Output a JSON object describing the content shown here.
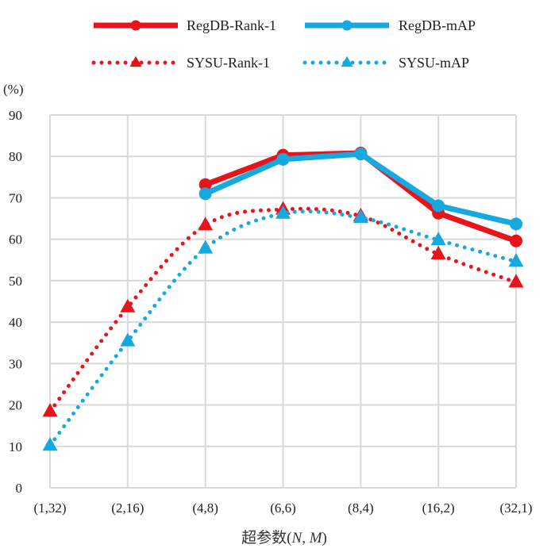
{
  "chart_data": {
    "type": "line",
    "title": "",
    "ylabel": "(%)",
    "xlabel_prefix": "超参数",
    "xlabel_vars": [
      "(",
      "N",
      ", ",
      "M",
      ")"
    ],
    "categories": [
      "(1,32)",
      "(2,16)",
      "(4,8)",
      "(6,6)",
      "(8,4)",
      "(16,2)",
      "(32,1)"
    ],
    "ylim": [
      0,
      90
    ],
    "yticks": [
      0,
      10,
      20,
      30,
      40,
      50,
      60,
      70,
      80,
      90
    ],
    "grid": true,
    "legend_position": "top",
    "series": [
      {
        "name": "RegDB-Rank-1",
        "style": "solid",
        "marker": "circle",
        "color": "#e8141b",
        "values": [
          null,
          null,
          73.2,
          80.3,
          80.8,
          66.3,
          59.6
        ]
      },
      {
        "name": "RegDB-mAP",
        "style": "solid",
        "marker": "circle",
        "color": "#16a9e0",
        "values": [
          null,
          null,
          71.0,
          79.3,
          80.6,
          68.1,
          63.7
        ]
      },
      {
        "name": "SYSU-Rank-1",
        "style": "dotted",
        "marker": "triangle",
        "color": "#e8141b",
        "values": [
          18.4,
          43.6,
          63.4,
          67.2,
          65.6,
          56.4,
          49.6
        ]
      },
      {
        "name": "SYSU-mAP",
        "style": "dotted",
        "marker": "triangle",
        "color": "#16a9e0",
        "values": [
          10.2,
          35.4,
          57.8,
          66.2,
          65.2,
          59.8,
          54.6
        ]
      }
    ]
  }
}
